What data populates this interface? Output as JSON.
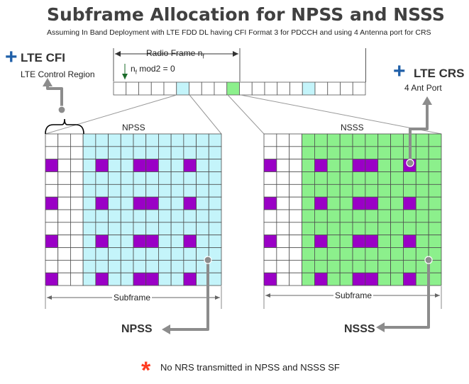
{
  "title": "Subframe Allocation for NPSS and NSSS",
  "subtitle": "Assuming In Band Deployment with LTE FDD DL having CFI Format 3 for PDCCH and using 4 Antenna port for CRS",
  "radio_frame": {
    "label": "Radio Frame n",
    "label_sub": "f",
    "mod_label": "n",
    "mod_sub": "f",
    "mod_rest": " mod2 = 0"
  },
  "cfi": {
    "plus": "+",
    "title": "LTE CFI",
    "subtitle": "LTE Control Region"
  },
  "crs": {
    "plus": "+",
    "title": "LTE CRS",
    "subtitle": "4 Ant Port"
  },
  "npss": {
    "grid_label": "NPSS",
    "axis_label": "Subframe",
    "callout": "NPSS"
  },
  "nsss": {
    "grid_label": "NSSS",
    "axis_label": "Subframe",
    "callout": "NSSS"
  },
  "footnote": {
    "star": "*",
    "text": "No NRS transmitted in NPSS and NSSS SF"
  },
  "colors": {
    "npss_fill": "#c4f4fa",
    "nsss_fill": "#8cf08c",
    "crs": "#9a00c6",
    "grid_line": "#4d4d4d",
    "arrow": "#8c8c8c",
    "plus": "#1f5fa8",
    "star": "#ff3b20"
  }
}
